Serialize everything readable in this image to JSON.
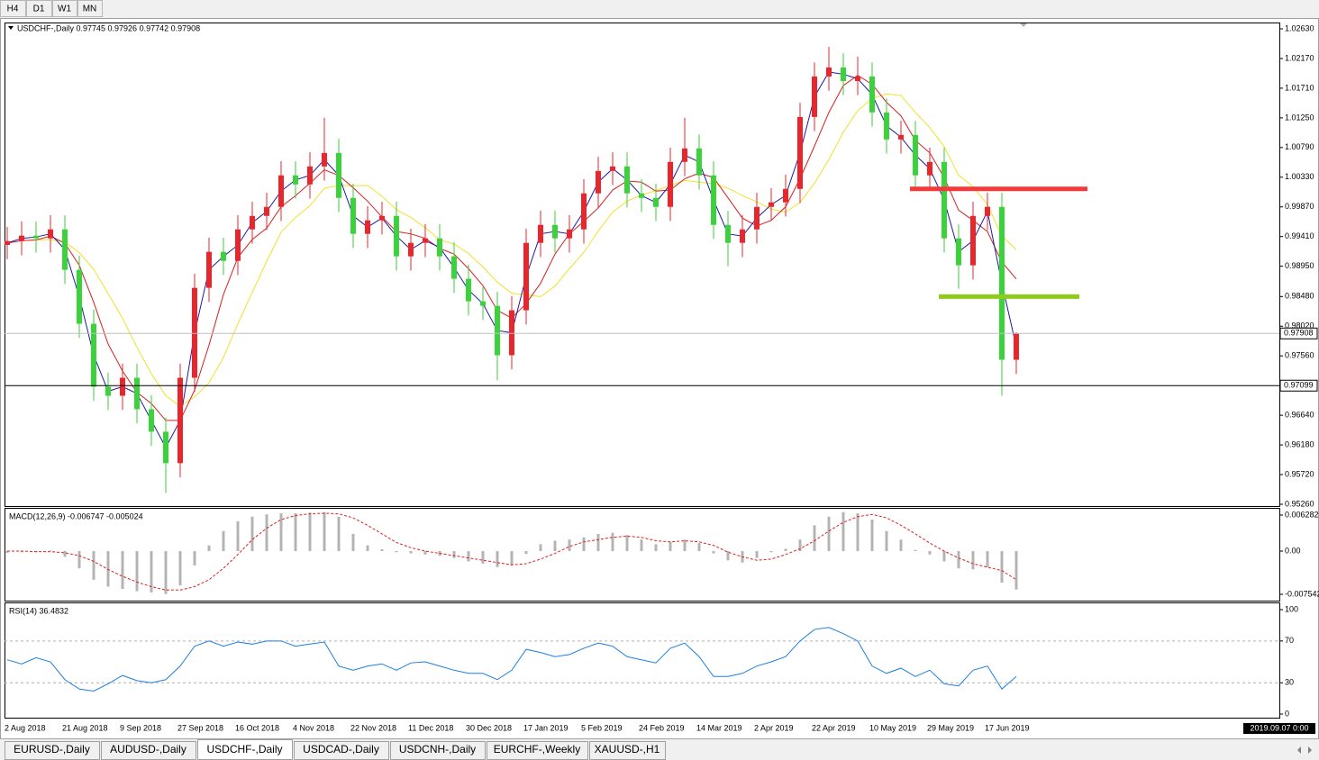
{
  "toolbar": {
    "timeframes": [
      "H4",
      "D1",
      "W1",
      "MN"
    ]
  },
  "tabs": [
    "EURUSD-,Daily",
    "AUDUSD-,Daily",
    "USDCHF-,Daily",
    "USDCAD-,Daily",
    "USDCNH-,Daily",
    "EURCHF-,Weekly",
    "XAUUSD-,H1"
  ],
  "active_tab": 2,
  "status": {
    "time": "2019.09.07 0:00"
  },
  "chart_data": [
    {
      "type": "candlestick",
      "title": "USDCHF-,Daily  0.97745 0.97926 0.97742 0.97908",
      "categories": [
        "2 Aug 2018",
        null,
        null,
        null,
        "21 Aug 2018",
        null,
        null,
        null,
        "9 Sep 2018",
        null,
        null,
        null,
        "27 Sep 2018",
        null,
        null,
        null,
        "16 Oct 2018",
        null,
        null,
        null,
        "4 Nov 2018",
        null,
        null,
        null,
        "22 Nov 2018",
        null,
        null,
        null,
        "11 Dec 2018",
        null,
        null,
        null,
        "30 Dec 2018",
        null,
        null,
        null,
        "17 Jan 2019",
        null,
        null,
        null,
        "5 Feb 2019",
        null,
        null,
        null,
        "24 Feb 2019",
        null,
        null,
        null,
        "14 Mar 2019",
        null,
        null,
        null,
        "2 Apr 2019",
        null,
        null,
        null,
        "22 Apr 2019",
        null,
        null,
        null,
        "10 May 2019",
        null,
        null,
        null,
        "29 May 2019",
        null,
        null,
        null,
        "17 Jun 2019",
        null,
        null
      ],
      "open": [
        0.9928,
        0.9934,
        0.99424,
        0.99382,
        0.99521,
        0.98894,
        0.98058,
        0.97082,
        0.96942,
        0.97221,
        0.96733,
        0.96385,
        0.95897,
        0.97221,
        0.98615,
        0.99173,
        0.99033,
        0.99521,
        0.9973,
        0.9987,
        1.00358,
        1.00218,
        1.00497,
        1.00706,
        1.00009,
        0.99452,
        0.99661,
        0.9973,
        0.99103,
        0.99312,
        0.99382,
        0.99103,
        0.98755,
        0.98406,
        0.98336,
        0.9757,
        0.98267,
        0.99312,
        0.99591,
        0.99382,
        0.99521,
        1.00079,
        1.00427,
        1.00497,
        1.00079,
        1.00009,
        0.9987,
        1.00567,
        1.00776,
        1.00358,
        0.99591,
        0.99312,
        0.99521,
        0.9987,
        0.9994,
        1.00149,
        1.01264,
        1.01891,
        1.02031,
        1.01821,
        1.01891,
        1.01334,
        1.00915,
        1.00985,
        1.00358,
        1.00567,
        0.99382,
        0.98964,
        0.9973,
        0.9987,
        0.975
      ],
      "high": [
        0.9956,
        0.99644,
        0.99644,
        0.99741,
        0.99741,
        0.99114,
        0.98278,
        0.97302,
        0.97441,
        0.97441,
        0.96953,
        0.96605,
        0.97441,
        0.98835,
        0.99393,
        0.99393,
        0.99741,
        0.9995,
        1.0009,
        1.00578,
        1.00578,
        1.00717,
        1.0125,
        1.00926,
        1.00229,
        0.99881,
        0.9995,
        0.9995,
        0.99532,
        0.99602,
        0.99602,
        0.99323,
        0.98975,
        0.98626,
        0.98556,
        0.98487,
        0.99532,
        0.99811,
        0.99811,
        0.99741,
        1.00299,
        1.00647,
        1.00717,
        1.00717,
        1.00299,
        1.00229,
        1.00787,
        1.0125,
        1.00996,
        1.00578,
        0.99811,
        0.99741,
        1.0009,
        1.0016,
        1.00369,
        1.01484,
        1.02111,
        1.02351,
        1.02251,
        1.022,
        1.02111,
        1.01554,
        1.01205,
        1.01205,
        1.00787,
        1.00787,
        0.99602,
        0.9995,
        1.0009,
        1.0009,
        0.97926
      ],
      "low": [
        0.9906,
        0.9912,
        0.99162,
        0.99162,
        0.98674,
        0.97838,
        0.96862,
        0.96722,
        0.96722,
        0.96513,
        0.96165,
        0.95437,
        0.95677,
        0.97001,
        0.98395,
        0.98813,
        0.98813,
        0.99301,
        0.9951,
        0.9965,
        0.99998,
        0.99998,
        1.00277,
        0.99789,
        0.99232,
        0.99232,
        0.99441,
        0.98883,
        0.98883,
        0.99092,
        0.98883,
        0.98535,
        0.98186,
        0.98116,
        0.9718,
        0.9735,
        0.98047,
        0.99092,
        0.99162,
        0.99162,
        0.99301,
        0.99859,
        1.00207,
        0.99859,
        0.99789,
        0.9965,
        0.9965,
        1.00347,
        1.00138,
        0.99371,
        0.9895,
        0.99092,
        0.99301,
        0.9965,
        0.9972,
        0.99929,
        1.01044,
        1.01671,
        1.01601,
        1.01601,
        1.01114,
        1.00695,
        1.00695,
        1.00138,
        1.00138,
        0.99162,
        0.986,
        0.98744,
        0.9951,
        0.96943,
        0.9728
      ],
      "close": [
        0.9934,
        0.99424,
        0.99382,
        0.99521,
        0.98894,
        0.98058,
        0.97082,
        0.96942,
        0.97221,
        0.96733,
        0.96385,
        0.95897,
        0.97221,
        0.98615,
        0.99173,
        0.99033,
        0.99521,
        0.9973,
        0.9987,
        1.00358,
        1.00218,
        1.00497,
        1.00706,
        1.00009,
        0.99452,
        0.99661,
        0.9973,
        0.99103,
        0.99312,
        0.99382,
        0.99103,
        0.98755,
        0.98406,
        0.98336,
        0.9757,
        0.98267,
        0.99312,
        0.99591,
        0.99382,
        0.99521,
        1.00079,
        1.00427,
        1.00497,
        1.00079,
        1.00009,
        0.9987,
        1.00567,
        1.00776,
        1.00358,
        0.99591,
        0.99312,
        0.99521,
        0.9987,
        0.9994,
        1.00149,
        1.01264,
        1.01891,
        1.02031,
        1.01821,
        1.01891,
        1.01334,
        1.00915,
        1.00985,
        1.00358,
        1.00567,
        0.99382,
        0.98964,
        0.9973,
        0.9987,
        0.975,
        0.97908
      ],
      "bull_color": "#e8262c",
      "bear_color": "#3cd23c",
      "lines": [
        {
          "color": "#f2e12a",
          "values": [
            0.9931,
            0.99346,
            0.99357,
            0.99364,
            0.99326,
            0.99161,
            0.98903,
            0.98525,
            0.98145,
            0.97692,
            0.97283,
            0.96943,
            0.96777,
            0.96926,
            0.97143,
            0.97535,
            0.98058,
            0.98546,
            0.99025,
            0.99478,
            0.99705,
            0.99888,
            1.00158,
            1.00201,
            1.00202,
            1.00202,
            1.00036,
            0.99827,
            0.99705,
            0.99548,
            0.99357,
            0.99295,
            0.99147,
            0.98938,
            0.98703,
            0.98529,
            0.98511,
            0.98477,
            0.98642,
            0.98912,
            0.99165,
            0.99496,
            0.99792,
            0.99958,
            1.00053,
            1.00123,
            1.00202,
            1.0028,
            1.00254,
            1.00228,
            1.00158,
            1.00045,
            0.99949,
            0.99836,
            0.99784,
            0.9994,
            1.00237,
            1.00603,
            1.01029,
            1.01361,
            1.01552,
            1.01622,
            1.01596,
            1.01335,
            1.01099,
            1.00803,
            1.00359,
            1.00184,
            0.99906,
            0.99417,
            0.99207
          ]
        },
        {
          "color": "#d42020",
          "values": [
            0.9931,
            0.99346,
            0.99357,
            0.99417,
            0.99306,
            0.98964,
            0.98389,
            0.97744,
            0.97326,
            0.96995,
            0.96821,
            0.96559,
            0.96559,
            0.9703,
            0.97727,
            0.98511,
            0.99086,
            0.99365,
            0.99539,
            0.9987,
            1.00044,
            1.00236,
            1.00445,
            1.00358,
            1.00167,
            0.99958,
            0.99714,
            0.99487,
            0.99452,
            0.99382,
            0.99226,
            0.99138,
            0.98912,
            0.9865,
            0.98267,
            0.98145,
            0.98372,
            0.98686,
            0.99139,
            0.99452,
            0.99644,
            0.99853,
            1.00131,
            1.00271,
            1.00253,
            1.00114,
            1.00132,
            1.00306,
            1.00393,
            1.00324,
            1.0001,
            0.99696,
            0.99574,
            0.99661,
            0.99871,
            1.00306,
            1.00812,
            1.01334,
            1.01752,
            1.01909,
            1.0177,
            1.01491,
            1.01282,
            1.00899,
            1.00707,
            1.00324,
            0.99818,
            0.99661,
            0.99487,
            0.99016,
            0.98752
          ]
        },
        {
          "color": "#1a1aa8",
          "values": [
            0.9931,
            0.99382,
            0.99403,
            0.99452,
            0.99208,
            0.98476,
            0.9757,
            0.97012,
            0.97082,
            0.96977,
            0.96559,
            0.96141,
            0.96559,
            0.97918,
            0.98894,
            0.99103,
            0.99277,
            0.99626,
            0.998,
            1.00114,
            1.00288,
            1.00358,
            1.00602,
            1.00358,
            0.99731,
            0.99557,
            0.99696,
            0.99417,
            0.99208,
            0.99347,
            0.99243,
            0.98929,
            0.98581,
            0.98371,
            0.97953,
            0.97919,
            0.9879,
            0.99452,
            0.99487,
            0.99452,
            0.998,
            1.00253,
            1.00462,
            1.00288,
            1.00044,
            0.9994,
            1.00219,
            1.00672,
            1.00567,
            0.99975,
            0.99452,
            0.99417,
            0.99696,
            0.99905,
            1.00045,
            1.00707,
            1.01578,
            1.01961,
            1.01926,
            1.01856,
            1.01613,
            1.01125,
            1.0095,
            1.00672,
            1.00463,
            0.99975,
            0.99173,
            0.99347,
            0.998,
            0.98685,
            0.97704
          ]
        }
      ],
      "levels": [
        {
          "value": 1.00149,
          "color": "#f23a3a"
        },
        {
          "value": 0.98479,
          "color": "#8fcc1a"
        }
      ],
      "price_lines": [
        {
          "value": 0.97908,
          "color": "#c0c0c0"
        },
        {
          "value": 0.97099,
          "color": "#000000"
        }
      ],
      "ylim": [
        0.95218,
        1.027
      ],
      "yticks": [
        {
          "value": 1.0263,
          "label": "1.02630"
        },
        {
          "value": 1.0217,
          "label": "1.02170"
        },
        {
          "value": 1.0171,
          "label": "1.01710"
        },
        {
          "value": 1.0125,
          "label": "1.01250"
        },
        {
          "value": 1.0079,
          "label": "1.00790"
        },
        {
          "value": 1.0033,
          "label": "1.00330"
        },
        {
          "value": 0.9987,
          "label": "0.99870"
        },
        {
          "value": 0.9941,
          "label": "0.99410"
        },
        {
          "value": 0.9895,
          "label": "0.98950"
        },
        {
          "value": 0.9848,
          "label": "0.98480"
        },
        {
          "value": 0.9802,
          "label": "0.98020"
        },
        {
          "value": 0.9756,
          "label": "0.97560"
        },
        {
          "value": 0.9664,
          "label": "0.96640"
        },
        {
          "value": 0.9618,
          "label": "0.96180"
        },
        {
          "value": 0.9572,
          "label": "0.95720"
        },
        {
          "value": 0.9526,
          "label": "0.95260"
        }
      ]
    },
    {
      "type": "macd",
      "title": "MACD(12,26,9) -0.006747 -0.005024",
      "histogram": [
        -0.0003,
        -0.0002,
        -0.0002,
        0.0001,
        -0.001,
        -0.003,
        -0.005,
        -0.0062,
        -0.0066,
        -0.007,
        -0.0072,
        -0.0075,
        -0.006,
        -0.0025,
        0.001,
        0.0035,
        0.0052,
        0.006,
        0.0064,
        0.0066,
        0.0066,
        0.0067,
        0.0068,
        0.006,
        0.003,
        0.001,
        0.0003,
        -0.0002,
        -0.0004,
        -0.0006,
        -0.0008,
        -0.0012,
        -0.0018,
        -0.0022,
        -0.0028,
        -0.0025,
        -0.0005,
        0.0012,
        0.0018,
        0.002,
        0.0024,
        0.003,
        0.0032,
        0.0028,
        0.002,
        0.0012,
        0.0016,
        0.002,
        0.0014,
        -0.0004,
        -0.0016,
        -0.002,
        -0.0012,
        -0.0002,
        0.0004,
        0.002,
        0.0045,
        0.006,
        0.0068,
        0.0066,
        0.0055,
        0.0035,
        0.002,
        0.0002,
        -0.0006,
        -0.0018,
        -0.003,
        -0.0032,
        -0.0028,
        -0.0055,
        -0.0067
      ],
      "signal": [
        0,
        0,
        -0.0001,
        -0.0001,
        -0.0003,
        -0.0008,
        -0.0018,
        -0.0032,
        -0.0044,
        -0.0054,
        -0.0062,
        -0.0068,
        -0.0068,
        -0.0062,
        -0.005,
        -0.003,
        -0.0006,
        0.002,
        0.004,
        0.0055,
        0.0062,
        0.0065,
        0.0066,
        0.0065,
        0.0058,
        0.0045,
        0.003,
        0.0015,
        0.0006,
        0,
        -0.0004,
        -0.0008,
        -0.0012,
        -0.0016,
        -0.002,
        -0.0024,
        -0.0022,
        -0.0014,
        -0.0004,
        0.0008,
        0.0016,
        0.002,
        0.0024,
        0.0026,
        0.0024,
        0.0018,
        0.0016,
        0.0018,
        0.0016,
        0.001,
        -0.0002,
        -0.001,
        -0.0016,
        -0.0014,
        -0.0006,
        0.0004,
        0.0018,
        0.0035,
        0.005,
        0.006,
        0.0064,
        0.0058,
        0.0045,
        0.003,
        0.0014,
        0,
        -0.0012,
        -0.0022,
        -0.0028,
        -0.0034,
        -0.005
      ],
      "histogram_color": "#b4b4b4",
      "signal_color": "#e02020",
      "ylim": [
        -0.008795,
        0.007224
      ],
      "yticks": [
        0.006282,
        {
          "value": 0,
          "label": "0.00"
        },
        -0.007542
      ]
    },
    {
      "type": "line",
      "title": "RSI(14) 36.4832",
      "values": [
        52,
        48,
        54,
        50,
        33,
        24,
        22,
        29,
        37,
        32,
        30,
        33,
        46,
        65,
        70,
        65,
        69,
        67,
        70,
        70,
        65,
        67,
        69,
        46,
        42,
        46,
        48,
        42,
        49,
        50,
        46,
        42,
        39,
        39,
        33,
        42,
        62,
        59,
        55,
        57,
        63,
        68,
        65,
        55,
        52,
        49,
        63,
        68,
        55,
        36,
        36,
        39,
        46,
        50,
        55,
        70,
        81,
        83,
        77,
        70,
        46,
        39,
        44,
        36,
        42,
        29,
        27,
        42,
        46,
        24,
        36
      ],
      "color": "#1e7fe0",
      "levels": [
        70,
        30
      ],
      "ylim": [
        -4.3,
        105.2
      ],
      "yticks": [
        100,
        70,
        30,
        0
      ]
    }
  ]
}
